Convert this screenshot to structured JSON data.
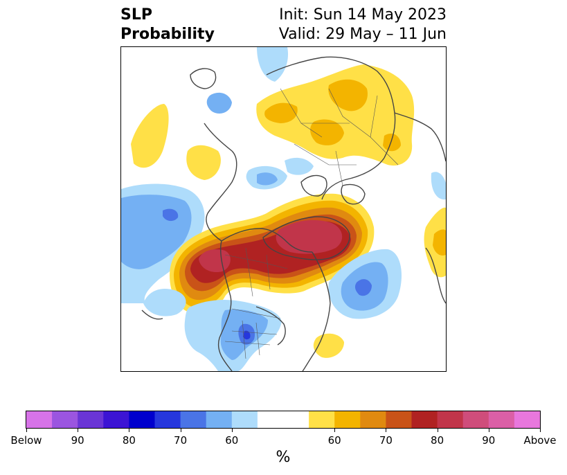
{
  "title": {
    "left_line1": "SLP",
    "left_line2": "Probability",
    "init": "Init: Sun 14 May 2023",
    "valid": "Valid: 29 May – 11 Jun"
  },
  "colorbar": {
    "label": "%",
    "ticks": [
      "Below",
      "90",
      "80",
      "70",
      "60",
      "60",
      "70",
      "80",
      "90",
      "Above"
    ],
    "colors": [
      "#d773e8",
      "#9b55e0",
      "#6a35d6",
      "#3c14d4",
      "#0000cd",
      "#2637dd",
      "#4a74e6",
      "#74b0f3",
      "#aedcfb",
      "#ffffff",
      "#ffffff",
      "#ffe047",
      "#f3b400",
      "#e08a10",
      "#c95318",
      "#b02222",
      "#c1354a",
      "#cf4d7b",
      "#db5fa6",
      "#e877dd"
    ]
  },
  "map": {
    "fill_colors": {
      "light_blue": "#aedcfb",
      "mid_blue": "#74b0f3",
      "blue": "#4a74e6",
      "dark_blue": "#2637dd",
      "yellow": "#ffe047",
      "gold": "#f3b400",
      "orange": "#e08a10",
      "dark_orange": "#c95318",
      "red": "#b02222",
      "crimson": "#c1354a"
    },
    "coastline_color": "#444444"
  }
}
